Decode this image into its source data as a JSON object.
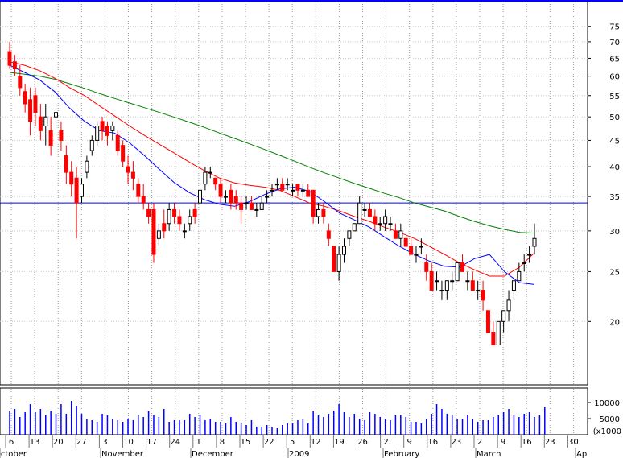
{
  "chart_data": {
    "type": "candlestick",
    "title": "",
    "price_axis": {
      "scale": "log",
      "ylim": [
        15.5,
        82
      ],
      "ticks": [
        20,
        25,
        30,
        35,
        40,
        45,
        50,
        55,
        60,
        65,
        70,
        75
      ]
    },
    "volume_axis": {
      "ticks": [
        5000,
        10000
      ],
      "unit_label": "x1000",
      "ylim": [
        0,
        14000
      ]
    },
    "x_axis": {
      "day_labels": [
        "6",
        "13",
        "20",
        "27",
        "3",
        "10",
        "17",
        "24",
        "1",
        "8",
        "15",
        "22",
        "5",
        "12",
        "19",
        "26",
        "2",
        "9",
        "16",
        "23",
        "2",
        "9",
        "16",
        "23",
        "30"
      ],
      "month_labels": [
        "October",
        "November",
        "December",
        "2009",
        "February",
        "March",
        "Ap"
      ]
    },
    "grid": true,
    "horizontal_line": {
      "value": 34,
      "color": "#0000ff"
    },
    "moving_averages": [
      {
        "color": "#008000",
        "values": [
          61,
          60.5,
          60,
          59.2,
          58,
          56.8,
          55.5,
          54.3,
          53.2,
          52.1,
          51,
          49.9,
          48.8,
          47.7,
          46.5,
          45.4,
          44.3,
          43.2,
          42.1,
          41,
          39.9,
          38.9,
          38,
          37.1,
          36.3,
          35.5,
          34.8,
          34,
          33.4,
          32.8,
          32,
          31.3,
          30.7,
          30.2,
          29.8,
          29.7
        ]
      },
      {
        "color": "#ff0000",
        "values": [
          64,
          63,
          61.5,
          59.5,
          57,
          55,
          52.5,
          50.2,
          48,
          46,
          44.2,
          42.5,
          40.8,
          39.3,
          38,
          37.2,
          36.8,
          36.5,
          36,
          35,
          34,
          33.5,
          32.8,
          32,
          31.3,
          30.5,
          29.8,
          29,
          28,
          27,
          26,
          25.2,
          24.5,
          24.5,
          25.5,
          27.2
        ]
      },
      {
        "color": "#0000ff",
        "values": [
          63,
          61,
          59,
          56,
          52,
          49,
          47,
          46.5,
          44.5,
          42,
          39.5,
          37.2,
          35.6,
          34.5,
          33.8,
          33.5,
          34.2,
          35.3,
          36.2,
          36.5,
          35.8,
          34.2,
          32.5,
          31.5,
          30.5,
          29.2,
          28,
          27,
          26.2,
          25.6,
          25.5,
          26.5,
          27,
          25,
          23.8,
          23.6
        ]
      }
    ],
    "candles": [
      {
        "o": 67,
        "h": 70,
        "l": 62,
        "c": 63
      },
      {
        "o": 64,
        "h": 66,
        "l": 60,
        "c": 62
      },
      {
        "o": 60,
        "h": 63,
        "l": 55,
        "c": 57
      },
      {
        "o": 56,
        "h": 58,
        "l": 51,
        "c": 53
      },
      {
        "o": 54,
        "h": 57,
        "l": 46,
        "c": 49
      },
      {
        "o": 55,
        "h": 57,
        "l": 48,
        "c": 51
      },
      {
        "o": 50,
        "h": 53,
        "l": 45,
        "c": 47
      },
      {
        "o": 48,
        "h": 53,
        "l": 44,
        "c": 50
      },
      {
        "o": 47,
        "h": 50,
        "l": 42,
        "c": 44
      },
      {
        "o": 50,
        "h": 53,
        "l": 48,
        "c": 51
      },
      {
        "o": 47,
        "h": 49,
        "l": 43,
        "c": 45
      },
      {
        "o": 42,
        "h": 44,
        "l": 37,
        "c": 39
      },
      {
        "o": 39,
        "h": 41,
        "l": 35,
        "c": 37
      },
      {
        "o": 38,
        "h": 40,
        "l": 29,
        "c": 34
      },
      {
        "o": 35,
        "h": 38,
        "l": 34,
        "c": 37
      },
      {
        "o": 39,
        "h": 42,
        "l": 38,
        "c": 41
      },
      {
        "o": 43,
        "h": 46,
        "l": 42,
        "c": 45
      },
      {
        "o": 45,
        "h": 49,
        "l": 44,
        "c": 48
      },
      {
        "o": 49,
        "h": 50,
        "l": 45,
        "c": 47
      },
      {
        "o": 48,
        "h": 49,
        "l": 44,
        "c": 46
      },
      {
        "o": 47,
        "h": 49,
        "l": 45,
        "c": 48
      },
      {
        "o": 46,
        "h": 47,
        "l": 42,
        "c": 43
      },
      {
        "o": 44,
        "h": 45,
        "l": 40,
        "c": 41
      },
      {
        "o": 40,
        "h": 42,
        "l": 37,
        "c": 39
      },
      {
        "o": 39,
        "h": 41,
        "l": 36,
        "c": 38
      },
      {
        "o": 37,
        "h": 38,
        "l": 34,
        "c": 35
      },
      {
        "o": 35,
        "h": 37,
        "l": 33,
        "c": 34
      },
      {
        "o": 33,
        "h": 34,
        "l": 31,
        "c": 32
      },
      {
        "o": 33,
        "h": 34,
        "l": 26,
        "c": 27
      },
      {
        "o": 29,
        "h": 31,
        "l": 28,
        "c": 30
      },
      {
        "o": 31,
        "h": 33,
        "l": 29,
        "c": 30
      },
      {
        "o": 31,
        "h": 34,
        "l": 30,
        "c": 33
      },
      {
        "o": 33,
        "h": 34,
        "l": 31,
        "c": 32
      },
      {
        "o": 32,
        "h": 33,
        "l": 30,
        "c": 31
      },
      {
        "o": 30,
        "h": 31,
        "l": 29,
        "c": 30
      },
      {
        "o": 31,
        "h": 33,
        "l": 30,
        "c": 32
      },
      {
        "o": 33,
        "h": 34,
        "l": 31,
        "c": 32
      },
      {
        "o": 34,
        "h": 37,
        "l": 34,
        "c": 36
      },
      {
        "o": 37,
        "h": 40,
        "l": 36,
        "c": 39
      },
      {
        "o": 39,
        "h": 40,
        "l": 38,
        "c": 39
      },
      {
        "o": 38,
        "h": 38,
        "l": 36,
        "c": 37
      },
      {
        "o": 37,
        "h": 38,
        "l": 34,
        "c": 35
      },
      {
        "o": 35,
        "h": 36,
        "l": 34,
        "c": 35
      },
      {
        "o": 36,
        "h": 37,
        "l": 33,
        "c": 34
      },
      {
        "o": 35,
        "h": 36,
        "l": 33,
        "c": 34
      },
      {
        "o": 34,
        "h": 35,
        "l": 31,
        "c": 33
      },
      {
        "o": 34,
        "h": 35,
        "l": 33,
        "c": 34
      },
      {
        "o": 34,
        "h": 35,
        "l": 33,
        "c": 33
      },
      {
        "o": 33,
        "h": 34,
        "l": 32,
        "c": 33
      },
      {
        "o": 33,
        "h": 35,
        "l": 33,
        "c": 34
      },
      {
        "o": 35,
        "h": 36,
        "l": 34,
        "c": 35
      },
      {
        "o": 36,
        "h": 37,
        "l": 35,
        "c": 36
      },
      {
        "o": 37,
        "h": 38,
        "l": 36,
        "c": 37
      },
      {
        "o": 37,
        "h": 38,
        "l": 36,
        "c": 36
      },
      {
        "o": 37,
        "h": 38,
        "l": 36,
        "c": 37
      },
      {
        "o": 36,
        "h": 37,
        "l": 35,
        "c": 36
      },
      {
        "o": 37,
        "h": 37,
        "l": 35,
        "c": 36
      },
      {
        "o": 36,
        "h": 37,
        "l": 35,
        "c": 36
      },
      {
        "o": 36,
        "h": 37,
        "l": 35,
        "c": 35
      },
      {
        "o": 36,
        "h": 36,
        "l": 31,
        "c": 32
      },
      {
        "o": 32,
        "h": 34,
        "l": 31,
        "c": 33
      },
      {
        "o": 33,
        "h": 34,
        "l": 31,
        "c": 32
      },
      {
        "o": 30,
        "h": 31,
        "l": 28,
        "c": 29
      },
      {
        "o": 28,
        "h": 28,
        "l": 25,
        "c": 25
      },
      {
        "o": 25,
        "h": 28,
        "l": 24,
        "c": 27
      },
      {
        "o": 27,
        "h": 29,
        "l": 26,
        "c": 28
      },
      {
        "o": 29,
        "h": 30,
        "l": 28,
        "c": 30
      },
      {
        "o": 30,
        "h": 31,
        "l": 30,
        "c": 31
      },
      {
        "o": 31,
        "h": 35,
        "l": 31,
        "c": 34
      },
      {
        "o": 33,
        "h": 34,
        "l": 32,
        "c": 33
      },
      {
        "o": 33,
        "h": 34,
        "l": 32,
        "c": 32
      },
      {
        "o": 32,
        "h": 33,
        "l": 30,
        "c": 31
      },
      {
        "o": 31,
        "h": 32,
        "l": 30,
        "c": 31
      },
      {
        "o": 31,
        "h": 33,
        "l": 30,
        "c": 32
      },
      {
        "o": 31,
        "h": 32,
        "l": 30,
        "c": 31
      },
      {
        "o": 30,
        "h": 31,
        "l": 29,
        "c": 29
      },
      {
        "o": 29,
        "h": 31,
        "l": 28,
        "c": 30
      },
      {
        "o": 29,
        "h": 29,
        "l": 28,
        "c": 28
      },
      {
        "o": 28,
        "h": 29,
        "l": 27,
        "c": 27
      },
      {
        "o": 27,
        "h": 28,
        "l": 26,
        "c": 27
      },
      {
        "o": 28,
        "h": 29,
        "l": 27,
        "c": 28
      },
      {
        "o": 26,
        "h": 27,
        "l": 24,
        "c": 25
      },
      {
        "o": 25,
        "h": 26,
        "l": 23,
        "c": 23
      },
      {
        "o": 24,
        "h": 25,
        "l": 23,
        "c": 24
      },
      {
        "o": 23,
        "h": 24,
        "l": 22,
        "c": 23
      },
      {
        "o": 23,
        "h": 24,
        "l": 22,
        "c": 24
      },
      {
        "o": 24,
        "h": 25,
        "l": 23,
        "c": 24
      },
      {
        "o": 24,
        "h": 26,
        "l": 24,
        "c": 26
      },
      {
        "o": 26,
        "h": 27,
        "l": 25,
        "c": 25
      },
      {
        "o": 24,
        "h": 25,
        "l": 23,
        "c": 24
      },
      {
        "o": 24,
        "h": 25,
        "l": 23,
        "c": 23
      },
      {
        "o": 23,
        "h": 24,
        "l": 22,
        "c": 23
      },
      {
        "o": 23,
        "h": 24,
        "l": 21,
        "c": 22
      },
      {
        "o": 21,
        "h": 21,
        "l": 19,
        "c": 19
      },
      {
        "o": 19,
        "h": 20,
        "l": 18,
        "c": 18
      },
      {
        "o": 18,
        "h": 20,
        "l": 18,
        "c": 20
      },
      {
        "o": 20,
        "h": 21,
        "l": 19,
        "c": 21
      },
      {
        "o": 21,
        "h": 23,
        "l": 20,
        "c": 22
      },
      {
        "o": 23,
        "h": 24,
        "l": 22,
        "c": 24
      },
      {
        "o": 24,
        "h": 26,
        "l": 24,
        "c": 25
      },
      {
        "o": 26,
        "h": 27,
        "l": 25,
        "c": 26
      },
      {
        "o": 27,
        "h": 28,
        "l": 26,
        "c": 27
      },
      {
        "o": 28,
        "h": 31,
        "l": 27,
        "c": 29
      }
    ],
    "volume": [
      7500,
      8000,
      5500,
      7000,
      9500,
      7000,
      8000,
      6000,
      7500,
      6500,
      9500,
      6500,
      10500,
      9000,
      6500,
      5000,
      4500,
      4000,
      6500,
      6000,
      5000,
      4500,
      4000,
      5000,
      4500,
      6000,
      5500,
      7500,
      6000,
      5500,
      8000,
      4000,
      4500,
      4500,
      4500,
      6500,
      5500,
      6000,
      4500,
      5000,
      4000,
      4000,
      3500,
      5500,
      4000,
      3500,
      3000,
      4500,
      2500,
      2500,
      3000,
      2500,
      2000,
      3000,
      3500,
      3500,
      4500,
      5000,
      3500,
      7500,
      6000,
      5500,
      6500,
      7500,
      9500,
      7000,
      5500,
      6500,
      5000,
      4500,
      7000,
      6500,
      5500,
      5000,
      4500,
      6000,
      6000,
      5500,
      4000,
      4000,
      3500,
      5000,
      6500,
      9500,
      8000,
      6500,
      6000,
      5000,
      5000,
      6000,
      5000,
      4000,
      4500,
      4500,
      5500,
      6000,
      7000,
      8000,
      6000,
      5500,
      6500,
      7000,
      5500,
      6000,
      8500
    ]
  }
}
